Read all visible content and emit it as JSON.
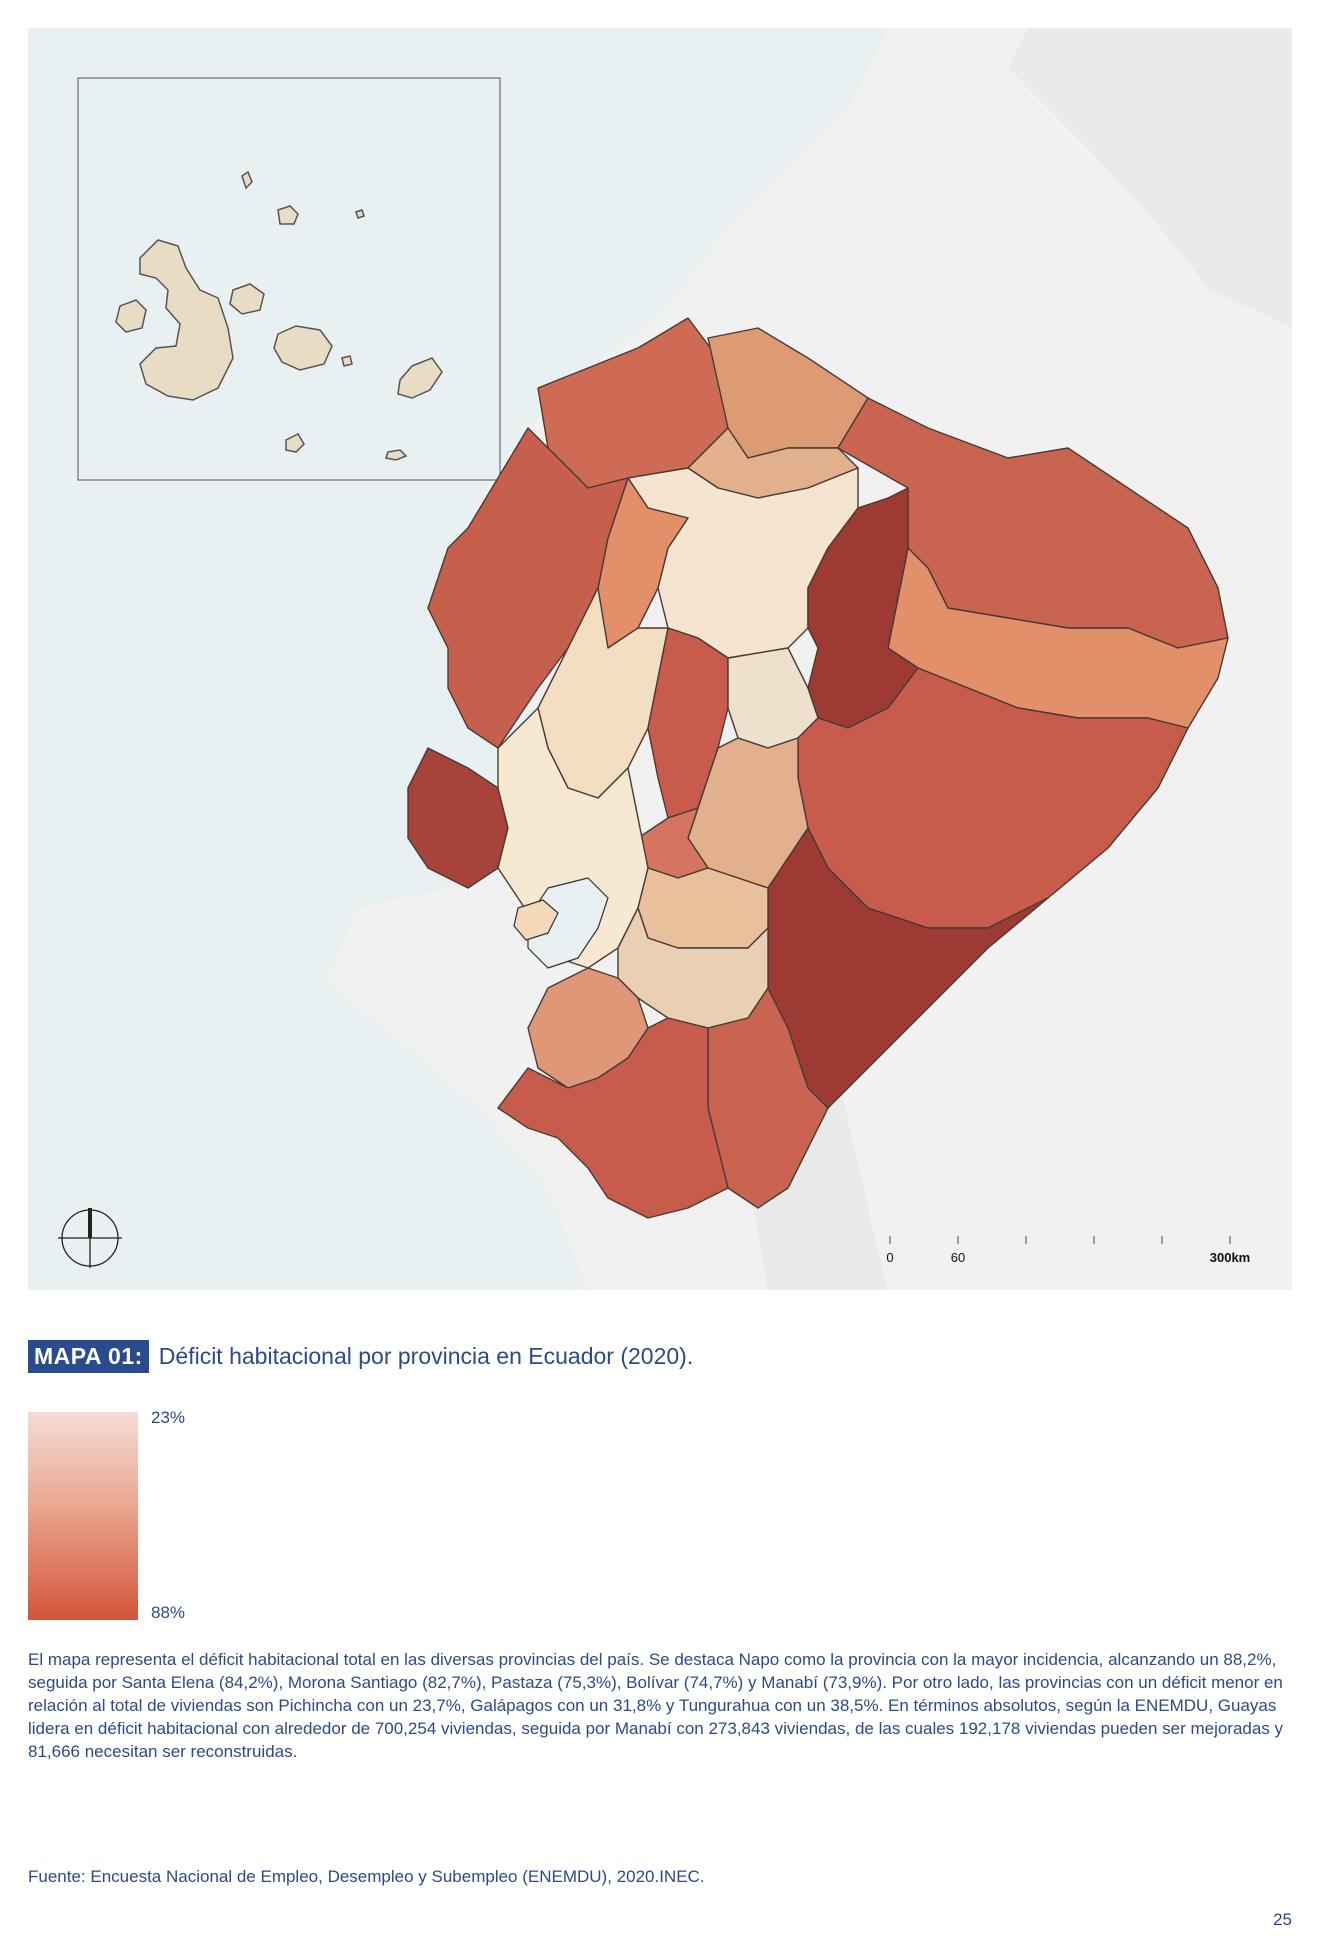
{
  "map": {
    "scale_labels": [
      "0",
      "60",
      "300km"
    ],
    "colors": {
      "ocean": "#e8f0f2",
      "land": "#f2f2f2",
      "inset_land": "#e8dcc4",
      "province_low": "#f5e6d3",
      "province_high": "#8f2f2a"
    }
  },
  "caption": {
    "label": "MAPA 01:",
    "title": "Déficit habitacional por provincia en Ecuador (2020)."
  },
  "legend": {
    "max_label": "23%",
    "min_label": "88%",
    "colors": {
      "top": "#f6dcd8",
      "bottom": "#d2553a"
    }
  },
  "description": "El mapa representa el déficit habitacional total en las diversas provincias del país. Se destaca Napo como la provincia con la mayor incidencia, alcanzando un 88,2%, seguida por Santa Elena (84,2%), Morona Santiago (82,7%), Pastaza (75,3%), Bolívar (74,7%) y Manabí (73,9%). Por otro lado, las provincias con un déficit menor en relación al total de viviendas son Pichincha con un 23,7%, Galápagos con un 31,8% y Tungurahua con un 38,5%. En términos absolutos, según la ENEMDU, Guayas lidera en déficit habitacional con alrededor de 700,254 viviendas, seguida por Manabí con 273,843 viviendas, de las cuales 192,178 viviendas pueden ser mejoradas y 81,666 necesitan ser reconstruidas.",
  "source": "Fuente: Encuesta Nacional de Empleo, Desempleo y Subempleo (ENEMDU), 2020.INEC.",
  "page_number": "25"
}
